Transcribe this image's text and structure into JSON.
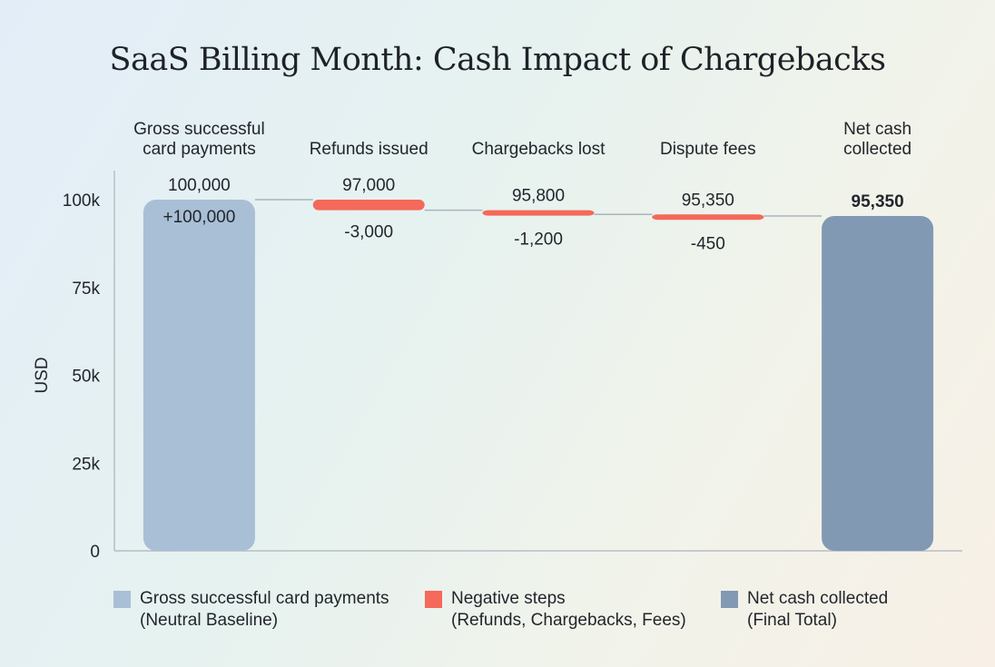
{
  "chart_data": {
    "type": "waterfall",
    "title": "SaaS Billing Month: Cash Impact of Chargebacks",
    "ylabel": "USD",
    "ylim": [
      0,
      100000
    ],
    "yticks": [
      0,
      25000,
      50000,
      75000,
      100000
    ],
    "ytick_labels": [
      "0",
      "25k",
      "50k",
      "75k",
      "100k"
    ],
    "steps": [
      {
        "category": [
          "Gross successful",
          "card payments"
        ],
        "kind": "baseline",
        "delta": 100000,
        "running_total": 100000,
        "total_label": "100,000",
        "delta_label": "+100,000"
      },
      {
        "category": [
          "Refunds issued"
        ],
        "kind": "negative",
        "delta": -3000,
        "running_total": 97000,
        "total_label": "97,000",
        "delta_label": "-3,000"
      },
      {
        "category": [
          "Chargebacks lost"
        ],
        "kind": "negative",
        "delta": -1200,
        "running_total": 95800,
        "total_label": "95,800",
        "delta_label": "-1,200"
      },
      {
        "category": [
          "Dispute fees"
        ],
        "kind": "negative",
        "delta": -450,
        "running_total": 95350,
        "total_label": "95,350",
        "delta_label": "-450"
      },
      {
        "category": [
          "Net cash",
          "collected"
        ],
        "kind": "total",
        "delta": 95350,
        "running_total": 95350,
        "total_label": "95,350",
        "delta_label": ""
      }
    ],
    "legend": [
      {
        "line1": "Gross successful card payments",
        "line2": "(Neutral Baseline)",
        "color": "#a9bfd6"
      },
      {
        "line1": "Negative steps",
        "line2": "(Refunds, Chargebacks, Fees)",
        "color": "#f4695a"
      },
      {
        "line1": "Net cash collected",
        "line2": "(Final Total)",
        "color": "#8299b4"
      }
    ],
    "legend_position": "bottom",
    "colors": {
      "baseline": "#a9bfd6",
      "negative": "#f4695a",
      "total": "#8299b4",
      "connector": "#a8b4bb",
      "axis": "#b8bec4"
    }
  }
}
